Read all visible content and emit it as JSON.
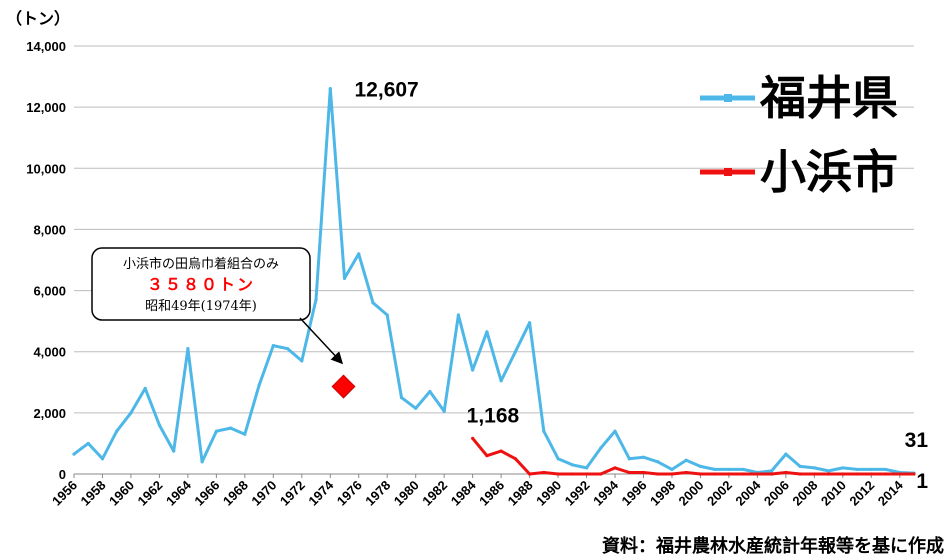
{
  "chart_data": {
    "type": "line",
    "ylabel": "（トン）",
    "ylim": [
      0,
      14000
    ],
    "xlim": [
      1956,
      2015
    ],
    "y_ticks": [
      "0",
      "2,000",
      "4,000",
      "6,000",
      "8,000",
      "10,000",
      "12,000",
      "14,000"
    ],
    "y_tick_values": [
      0,
      2000,
      4000,
      6000,
      8000,
      10000,
      12000,
      14000
    ],
    "x_ticks": [
      "1956",
      "1958",
      "1960",
      "1962",
      "1964",
      "1966",
      "1968",
      "1970",
      "1972",
      "1974",
      "1976",
      "1978",
      "1980",
      "1982",
      "1984",
      "1986",
      "1988",
      "1990",
      "1992",
      "1994",
      "1996",
      "1998",
      "2000",
      "2002",
      "2004",
      "2006",
      "2008",
      "2010",
      "2012",
      "2014"
    ],
    "x_tick_values": [
      1956,
      1958,
      1960,
      1962,
      1964,
      1966,
      1968,
      1970,
      1972,
      1974,
      1976,
      1978,
      1980,
      1982,
      1984,
      1986,
      1988,
      1990,
      1992,
      1994,
      1996,
      1998,
      2000,
      2002,
      2004,
      2006,
      2008,
      2010,
      2012,
      2014
    ],
    "grid": "horizontal",
    "legend_position": "top-right",
    "series": [
      {
        "name": "福井県",
        "color": "#4db8e8",
        "x": [
          1956,
          1957,
          1958,
          1959,
          1960,
          1961,
          1962,
          1963,
          1964,
          1965,
          1966,
          1967,
          1968,
          1969,
          1970,
          1971,
          1972,
          1973,
          1974,
          1975,
          1976,
          1977,
          1978,
          1979,
          1980,
          1981,
          1982,
          1983,
          1984,
          1985,
          1986,
          1987,
          1988,
          1989,
          1990,
          1991,
          1992,
          1993,
          1994,
          1995,
          1996,
          1997,
          1998,
          1999,
          2000,
          2001,
          2002,
          2003,
          2004,
          2005,
          2006,
          2007,
          2008,
          2009,
          2010,
          2011,
          2012,
          2013,
          2014,
          2015
        ],
        "values": [
          650,
          1000,
          500,
          1400,
          2000,
          2800,
          1600,
          750,
          4100,
          400,
          1400,
          1500,
          1300,
          2900,
          4200,
          4100,
          3700,
          5700,
          12607,
          6400,
          7200,
          5600,
          5200,
          2500,
          2150,
          2700,
          2050,
          5200,
          3400,
          4650,
          3050,
          4000,
          4950,
          1400,
          500,
          300,
          200,
          850,
          1400,
          500,
          550,
          400,
          150,
          450,
          250,
          150,
          150,
          150,
          50,
          100,
          650,
          250,
          200,
          100,
          200,
          150,
          150,
          150,
          50,
          31
        ]
      },
      {
        "name": "小浜市",
        "color": "#ee1111",
        "x": [
          1984,
          1985,
          1986,
          1987,
          1988,
          1989,
          1990,
          1991,
          1992,
          1993,
          1994,
          1995,
          1996,
          1997,
          1998,
          1999,
          2000,
          2001,
          2002,
          2003,
          2004,
          2005,
          2006,
          2007,
          2008,
          2009,
          2010,
          2011,
          2012,
          2013,
          2014,
          2015
        ],
        "values": [
          1168,
          600,
          750,
          500,
          0,
          50,
          0,
          0,
          0,
          0,
          200,
          50,
          50,
          0,
          0,
          50,
          0,
          0,
          0,
          0,
          0,
          0,
          50,
          0,
          0,
          0,
          0,
          0,
          0,
          0,
          0,
          1
        ]
      }
    ],
    "highlight_point": {
      "x": 1975,
      "value": 3580
    },
    "annotations": [
      {
        "text": "12,607",
        "x": 1975,
        "y": 12607
      },
      {
        "text": "1,168",
        "x": 1984,
        "y": 1168
      },
      {
        "text": "31",
        "x": 2015,
        "y": 31
      },
      {
        "text": "1",
        "x": 2015,
        "y": 1
      }
    ],
    "callout": {
      "line1": "小浜市の田烏巾着組合のみ",
      "line2": "３５８０トン",
      "line3": "昭和49年(1974年)"
    },
    "source": "資料：福井農林水産統計年報等を基に作成"
  }
}
